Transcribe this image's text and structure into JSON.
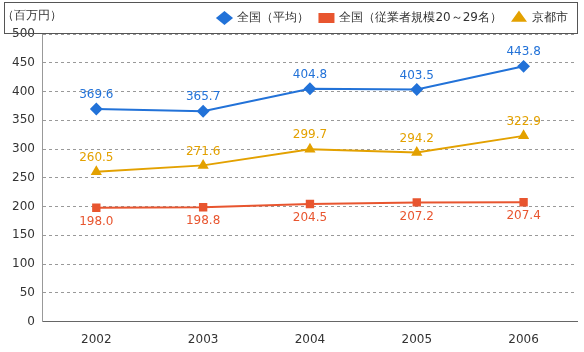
{
  "chart_data": {
    "type": "line",
    "ylabel": "（百万円）",
    "categories": [
      "2002",
      "2003",
      "2004",
      "2005",
      "2006"
    ],
    "series": [
      {
        "name": "全国（平均）",
        "color": "#2272d8",
        "marker": "diamond",
        "values": [
          369.6,
          365.7,
          404.8,
          403.5,
          443.8
        ]
      },
      {
        "name": "全国（従業者規模20～29名）",
        "color": "#e8552f",
        "marker": "square",
        "values": [
          198.0,
          198.8,
          204.5,
          207.2,
          207.4
        ],
        "value_labels": [
          "198.0",
          "198.8",
          "204.5",
          "207.2",
          "207.4"
        ]
      },
      {
        "name": "京都市",
        "color": "#e3a100",
        "marker": "triangle",
        "values": [
          260.5,
          271.6,
          299.7,
          294.2,
          322.9
        ]
      }
    ],
    "ylim": [
      0,
      500
    ],
    "yticks": [
      0,
      50,
      100,
      150,
      200,
      250,
      300,
      350,
      400,
      450,
      500
    ],
    "grid": true,
    "legend": "top",
    "data_labels": true
  }
}
